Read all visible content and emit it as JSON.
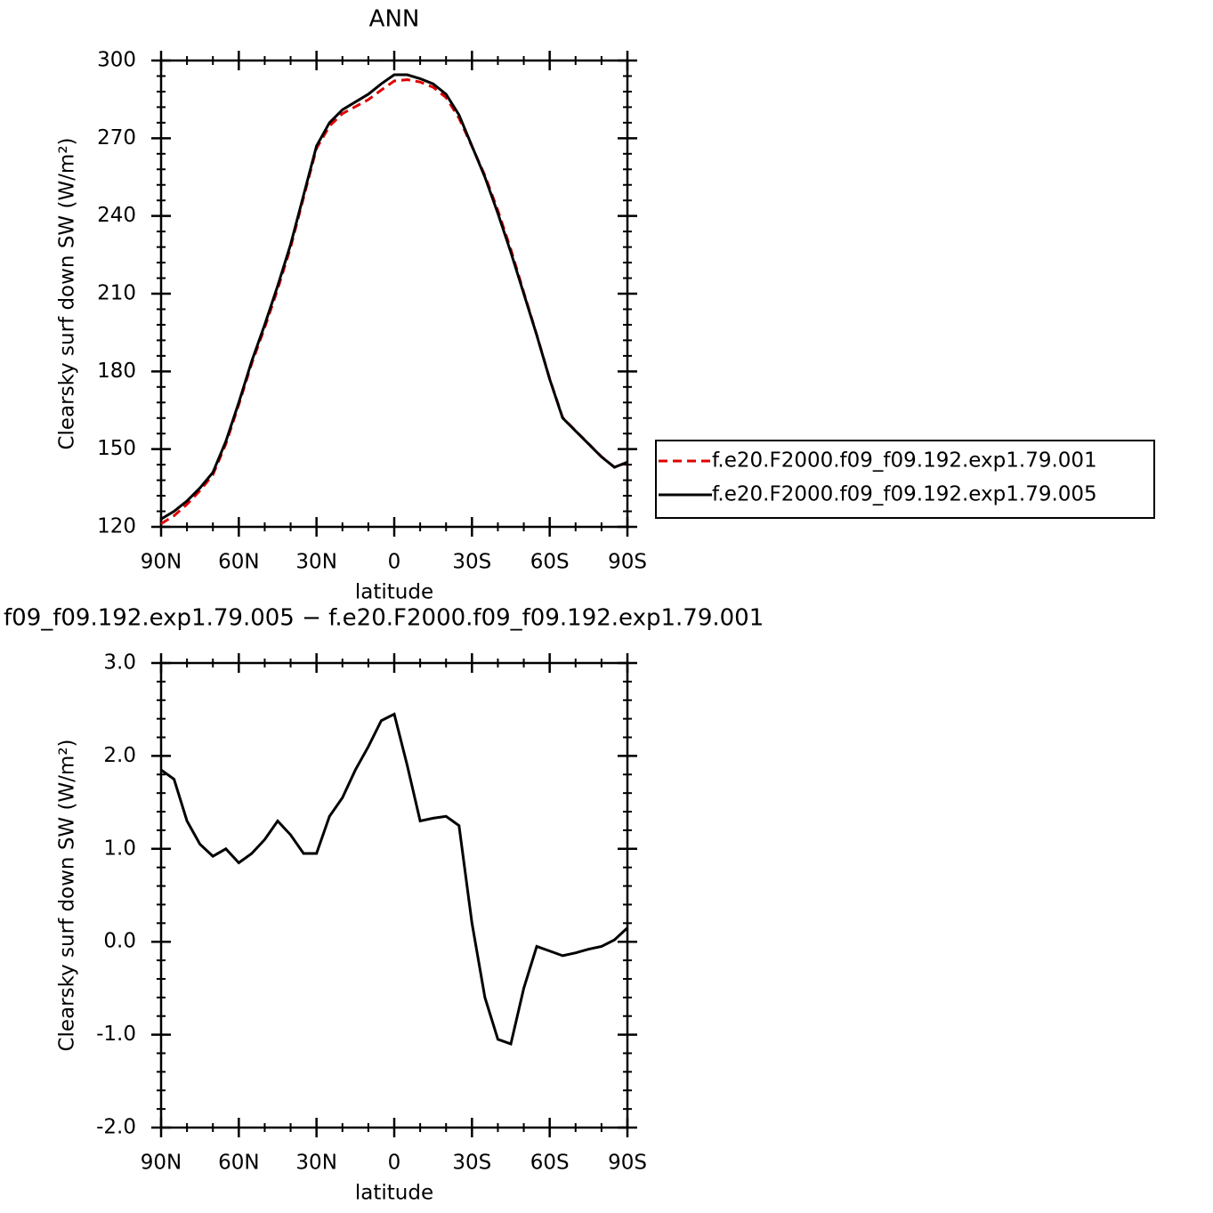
{
  "chart_data": [
    {
      "type": "line",
      "title": "ANN",
      "xlabel": "latitude",
      "ylabel": "Clearsky surf down SW (W/m²)",
      "x": [
        90,
        85,
        80,
        75,
        70,
        65,
        60,
        55,
        50,
        45,
        40,
        35,
        30,
        25,
        20,
        15,
        10,
        5,
        0,
        -5,
        -10,
        -15,
        -20,
        -25,
        -30,
        -35,
        -40,
        -45,
        -50,
        -55,
        -60,
        -65,
        -70,
        -75,
        -80,
        -85,
        -90
      ],
      "series": [
        {
          "name": "f.e20.F2000.f09_f09.192.exp1.79.001",
          "color": "#e00000",
          "dash": true,
          "values": [
            121.2,
            124.3,
            128.7,
            134,
            140.1,
            152,
            167.2,
            183.1,
            196.9,
            211.7,
            227.9,
            247.1,
            266.1,
            274.7,
            279.5,
            282.2,
            284.9,
            288.6,
            292.1,
            292.6,
            291.7,
            289.7,
            285.7,
            277.8,
            266.8,
            255.6,
            242.1,
            227.1,
            210.5,
            194.1,
            177.1,
            162.2,
            157.1,
            152.1,
            147.1,
            143,
            144.9
          ]
        },
        {
          "name": "f.e20.F2000.f09_f09.192.exp1.79.005",
          "color": "#000000",
          "dash": false,
          "values": [
            123,
            126,
            130,
            135,
            141,
            153,
            168,
            184,
            198,
            213,
            229,
            248,
            267,
            276,
            281,
            284,
            287,
            291,
            294.5,
            294.5,
            293,
            291,
            287,
            279,
            267,
            255,
            241,
            226,
            210,
            194,
            177,
            162,
            157,
            152,
            147,
            143,
            145
          ]
        }
      ],
      "xlim": [
        90,
        -90
      ],
      "xticks": [
        {
          "value": 90,
          "label": "90N"
        },
        {
          "value": 60,
          "label": "60N"
        },
        {
          "value": 30,
          "label": "30N"
        },
        0,
        {
          "value": -30,
          "label": "30S"
        },
        {
          "value": -60,
          "label": "60S"
        },
        {
          "value": -90,
          "label": "90S"
        }
      ],
      "ylim": [
        120,
        300
      ],
      "yticks": [
        120,
        150,
        180,
        210,
        240,
        270,
        300
      ]
    },
    {
      "type": "line",
      "title": "f09_f09.192.exp1.79.005 − f.e20.F2000.f09_f09.192.exp1.79.001",
      "xlabel": "latitude",
      "ylabel": "Clearsky surf down SW (W/m²)",
      "x": [
        90,
        85,
        80,
        75,
        70,
        65,
        60,
        55,
        50,
        45,
        40,
        35,
        30,
        25,
        20,
        15,
        10,
        5,
        0,
        -5,
        -10,
        -15,
        -20,
        -25,
        -30,
        -35,
        -40,
        -45,
        -50,
        -55,
        -60,
        -65,
        -70,
        -75,
        -80,
        -85,
        -90
      ],
      "series": [
        {
          "color": "#000000",
          "dash": false,
          "values": [
            1.85,
            1.75,
            1.3,
            1.05,
            0.92,
            1.0,
            0.85,
            0.95,
            1.1,
            1.3,
            1.15,
            0.95,
            0.95,
            1.35,
            1.55,
            1.85,
            2.1,
            2.38,
            2.45,
            1.9,
            1.3,
            1.33,
            1.35,
            1.25,
            0.2,
            -0.6,
            -1.05,
            -1.1,
            -0.5,
            -0.05,
            -0.1,
            -0.15,
            -0.12,
            -0.08,
            -0.05,
            0.02,
            0.15
          ]
        }
      ],
      "xlim": [
        90,
        -90
      ],
      "xticks": [
        {
          "value": 90,
          "label": "90N"
        },
        {
          "value": 60,
          "label": "60N"
        },
        {
          "value": 30,
          "label": "30N"
        },
        0,
        {
          "value": -30,
          "label": "30S"
        },
        {
          "value": -60,
          "label": "60S"
        },
        {
          "value": -90,
          "label": "90S"
        }
      ],
      "ylim": [
        -2,
        3
      ],
      "yticks": [
        {
          "value": -2,
          "label": "-2.0"
        },
        {
          "value": -1,
          "label": "-1.0"
        },
        {
          "value": 0,
          "label": "0.0"
        },
        {
          "value": 1,
          "label": "1.0"
        },
        {
          "value": 2,
          "label": "2.0"
        },
        {
          "value": 3,
          "label": "3.0"
        }
      ]
    }
  ]
}
